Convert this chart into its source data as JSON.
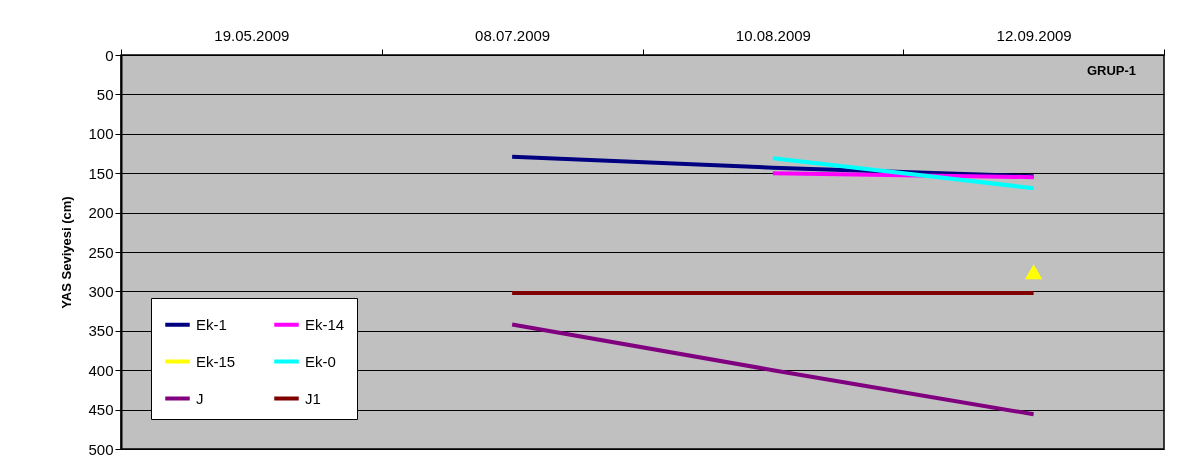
{
  "chart_data": {
    "type": "line",
    "ylabel": "YAS Seviyesi (cm)",
    "annotations": [
      "GRUP-1"
    ],
    "categories": [
      "19.05.2009",
      "08.07.2009",
      "10.08.2009",
      "12.09.2009"
    ],
    "series": [
      {
        "name": "Ek-1",
        "color": "#000080",
        "values": [
          null,
          129,
          143,
          154
        ]
      },
      {
        "name": "Ek-14",
        "color": "#ff00ff",
        "values": [
          null,
          null,
          150,
          155
        ]
      },
      {
        "name": "Ek-15",
        "color": "#ffff00",
        "marker": "triangle",
        "values": [
          null,
          null,
          null,
          275
        ]
      },
      {
        "name": "Ek-0",
        "color": "#00ffff",
        "values": [
          null,
          null,
          131,
          169
        ]
      },
      {
        "name": "J",
        "color": "#800080",
        "values": [
          null,
          342,
          400,
          456
        ]
      },
      {
        "name": "J1",
        "color": "#800000",
        "values": [
          null,
          302,
          302,
          302
        ]
      }
    ],
    "ylim": [
      500,
      0
    ],
    "yticks": [
      0,
      50,
      100,
      150,
      200,
      250,
      300,
      350,
      400,
      450,
      500
    ],
    "grid": "y",
    "legend": "bottom left"
  }
}
